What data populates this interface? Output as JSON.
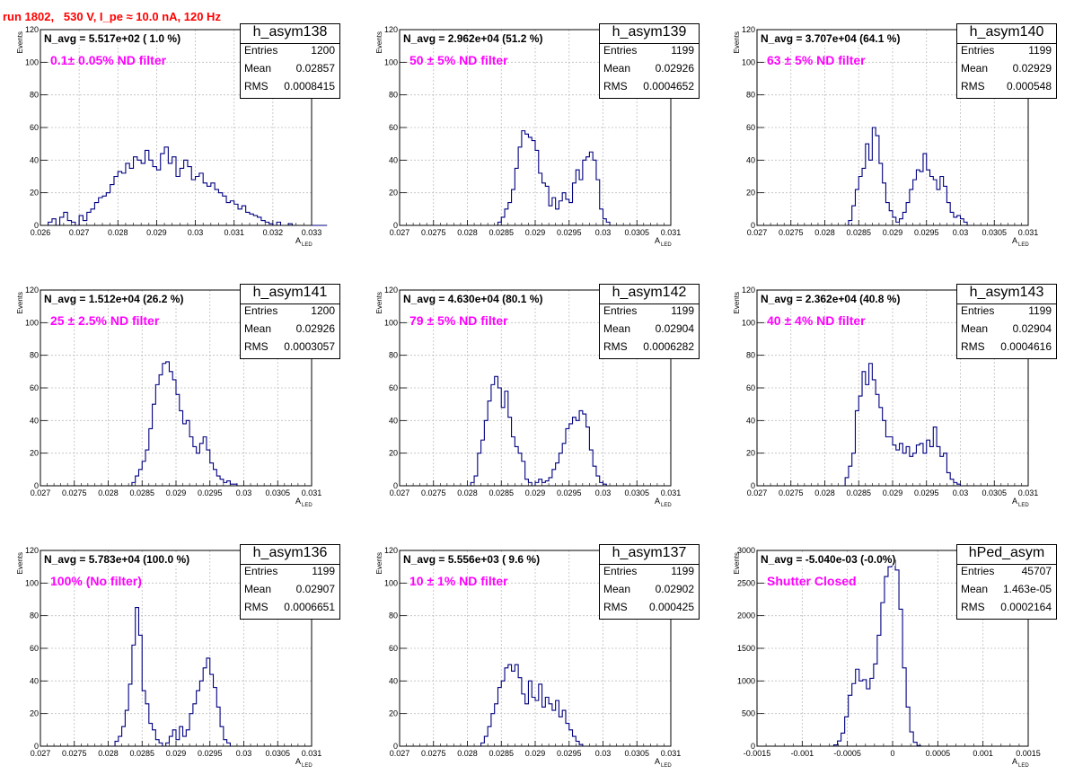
{
  "header": {
    "run_title": "run 1802,   530 V, I_pe ≈ 10.0 nA, 120 Hz"
  },
  "stats_labels": {
    "entries": "Entries",
    "mean": "Mean",
    "rms": "RMS"
  },
  "axis_labels": {
    "y": "Events",
    "x_main": "A",
    "x_sub": "LED"
  },
  "colors": {
    "histogram": "#000080",
    "grid": "#bdbdbd",
    "run_title": "#ff0000",
    "filter_text": "#ff00ff"
  },
  "chart_data": [
    {
      "type": "bar",
      "name": "h_asym138",
      "title": "N_avg = 5.517e+02 ( 1.0 %)",
      "filter_label": "0.1± 0.05% ND filter",
      "entries": "1200",
      "mean": "0.02857",
      "rms": "0.0008415",
      "xlim": [
        0.026,
        0.033
      ],
      "ylim": [
        0,
        120
      ],
      "xticks": [
        0.026,
        0.027,
        0.028,
        0.029,
        0.03,
        0.031,
        0.032,
        0.033
      ],
      "xtick_labels": [
        "0.026",
        "0.027",
        "0.028",
        "0.029",
        "0.03",
        "0.031",
        "0.032",
        "0.033"
      ],
      "yticks": [
        0,
        20,
        40,
        60,
        80,
        100,
        120
      ],
      "ytick_labels": [
        "0",
        "20",
        "40",
        "60",
        "80",
        "100",
        "120"
      ],
      "bin_start": 0.0262,
      "bin_width": 0.0001,
      "values": [
        2,
        4,
        0,
        5,
        8,
        3,
        2,
        0,
        6,
        3,
        8,
        10,
        14,
        17,
        18,
        20,
        25,
        30,
        33,
        32,
        38,
        35,
        42,
        40,
        38,
        46,
        40,
        36,
        34,
        44,
        48,
        38,
        42,
        30,
        35,
        40,
        36,
        28,
        30,
        32,
        26,
        24,
        26,
        22,
        20,
        18,
        14,
        15,
        13,
        10,
        12,
        8,
        7,
        6,
        5,
        3,
        2,
        1,
        0,
        2,
        0,
        0,
        1,
        0,
        0,
        0,
        0,
        0,
        0,
        0,
        0,
        0
      ]
    },
    {
      "type": "bar",
      "name": "h_asym139",
      "title": "N_avg = 2.962e+04 (51.2 %)",
      "filter_label": "50 ± 5% ND filter",
      "entries": "1199",
      "mean": "0.02926",
      "rms": "0.0004652",
      "xlim": [
        0.027,
        0.031
      ],
      "ylim": [
        0,
        120
      ],
      "xticks": [
        0.027,
        0.0275,
        0.028,
        0.0285,
        0.029,
        0.0295,
        0.03,
        0.0305,
        0.031
      ],
      "xtick_labels": [
        "0.027",
        "0.0275",
        "0.028",
        "0.0285",
        "0.029",
        "0.0295",
        "0.03",
        "0.0305",
        "0.031"
      ],
      "yticks": [
        0,
        20,
        40,
        60,
        80,
        100,
        120
      ],
      "ytick_labels": [
        "0",
        "20",
        "40",
        "60",
        "80",
        "100",
        "120"
      ],
      "bin_start": 0.02845,
      "bin_width": 5e-05,
      "values": [
        2,
        5,
        10,
        14,
        22,
        35,
        48,
        58,
        56,
        54,
        52,
        46,
        32,
        26,
        24,
        12,
        17,
        10,
        15,
        20,
        16,
        14,
        26,
        34,
        28,
        40,
        42,
        45,
        40,
        28,
        10,
        4,
        2,
        0
      ]
    },
    {
      "type": "bar",
      "name": "h_asym140",
      "title": "N_avg = 3.707e+04 (64.1 %)",
      "filter_label": "63 ± 5% ND filter",
      "entries": "1199",
      "mean": "0.02929",
      "rms": "0.000548",
      "xlim": [
        0.027,
        0.031
      ],
      "ylim": [
        0,
        120
      ],
      "xticks": [
        0.027,
        0.0275,
        0.028,
        0.0285,
        0.029,
        0.0295,
        0.03,
        0.0305,
        0.031
      ],
      "xtick_labels": [
        "0.027",
        "0.0275",
        "0.028",
        "0.0285",
        "0.029",
        "0.0295",
        "0.03",
        "0.0305",
        "0.031"
      ],
      "yticks": [
        0,
        20,
        40,
        60,
        80,
        100,
        120
      ],
      "ytick_labels": [
        "0",
        "20",
        "40",
        "60",
        "80",
        "100",
        "120"
      ],
      "bin_start": 0.02835,
      "bin_width": 5e-05,
      "values": [
        3,
        12,
        22,
        30,
        35,
        50,
        40,
        60,
        55,
        38,
        26,
        14,
        9,
        5,
        2,
        4,
        8,
        14,
        22,
        28,
        34,
        33,
        44,
        34,
        30,
        28,
        22,
        30,
        24,
        14,
        8,
        5,
        6,
        4,
        2
      ]
    },
    {
      "type": "bar",
      "name": "h_asym141",
      "title": "N_avg = 1.512e+04 (26.2 %)",
      "filter_label": "25 ± 2.5% ND filter",
      "entries": "1200",
      "mean": "0.02926",
      "rms": "0.0003057",
      "xlim": [
        0.027,
        0.031
      ],
      "ylim": [
        0,
        120
      ],
      "xticks": [
        0.027,
        0.0275,
        0.028,
        0.0285,
        0.029,
        0.0295,
        0.03,
        0.0305,
        0.031
      ],
      "xtick_labels": [
        "0.027",
        "0.0275",
        "0.028",
        "0.0285",
        "0.029",
        "0.0295",
        "0.03",
        "0.0305",
        "0.031"
      ],
      "yticks": [
        0,
        20,
        40,
        60,
        80,
        100,
        120
      ],
      "ytick_labels": [
        "0",
        "20",
        "40",
        "60",
        "80",
        "100",
        "120"
      ],
      "bin_start": 0.02835,
      "bin_width": 5e-05,
      "values": [
        2,
        6,
        10,
        15,
        22,
        35,
        50,
        62,
        68,
        75,
        76,
        70,
        65,
        56,
        46,
        38,
        40,
        30,
        24,
        20,
        26,
        30,
        22,
        14,
        10,
        6,
        4,
        2,
        3,
        1,
        1,
        0,
        0
      ]
    },
    {
      "type": "bar",
      "name": "h_asym142",
      "title": "N_avg = 4.630e+04 (80.1 %)",
      "filter_label": "79 ± 5% ND filter",
      "entries": "1199",
      "mean": "0.02904",
      "rms": "0.0006282",
      "xlim": [
        0.027,
        0.031
      ],
      "ylim": [
        0,
        120
      ],
      "xticks": [
        0.027,
        0.0275,
        0.028,
        0.0285,
        0.029,
        0.0295,
        0.03,
        0.0305,
        0.031
      ],
      "xtick_labels": [
        "0.027",
        "0.0275",
        "0.028",
        "0.0285",
        "0.029",
        "0.0295",
        "0.03",
        "0.0305",
        "0.031"
      ],
      "yticks": [
        0,
        20,
        40,
        60,
        80,
        100,
        120
      ],
      "ytick_labels": [
        "0",
        "20",
        "40",
        "60",
        "80",
        "100",
        "120"
      ],
      "bin_start": 0.02805,
      "bin_width": 5e-05,
      "values": [
        2,
        6,
        20,
        28,
        40,
        52,
        62,
        67,
        60,
        48,
        58,
        42,
        30,
        24,
        20,
        15,
        4,
        2,
        0,
        2,
        4,
        2,
        3,
        5,
        10,
        14,
        20,
        26,
        35,
        38,
        42,
        40,
        46,
        44,
        36,
        22,
        12,
        6,
        2,
        1
      ]
    },
    {
      "type": "bar",
      "name": "h_asym143",
      "title": "N_avg = 2.362e+04 (40.8 %)",
      "filter_label": "40 ± 4% ND filter",
      "entries": "1199",
      "mean": "0.02904",
      "rms": "0.0004616",
      "xlim": [
        0.027,
        0.031
      ],
      "ylim": [
        0,
        120
      ],
      "xticks": [
        0.027,
        0.0275,
        0.028,
        0.0285,
        0.029,
        0.0295,
        0.03,
        0.0305,
        0.031
      ],
      "xtick_labels": [
        "0.027",
        "0.0275",
        "0.028",
        "0.0285",
        "0.029",
        "0.0295",
        "0.03",
        "0.0305",
        "0.031"
      ],
      "yticks": [
        0,
        20,
        40,
        60,
        80,
        100,
        120
      ],
      "ytick_labels": [
        "0",
        "20",
        "40",
        "60",
        "80",
        "100",
        "120"
      ],
      "bin_start": 0.0283,
      "bin_width": 5e-05,
      "values": [
        5,
        12,
        20,
        46,
        55,
        70,
        62,
        75,
        65,
        56,
        48,
        40,
        30,
        30,
        25,
        22,
        26,
        20,
        24,
        18,
        20,
        25,
        26,
        20,
        28,
        24,
        36,
        24,
        18,
        20,
        8,
        4,
        2,
        1
      ]
    },
    {
      "type": "bar",
      "name": "h_asym136",
      "title": "N_avg = 5.783e+04 (100.0 %)",
      "filter_label": "100% (No filter)",
      "entries": "1199",
      "mean": "0.02907",
      "rms": "0.0006651",
      "xlim": [
        0.027,
        0.031
      ],
      "ylim": [
        0,
        120
      ],
      "xticks": [
        0.027,
        0.0275,
        0.028,
        0.0285,
        0.029,
        0.0295,
        0.03,
        0.0305,
        0.031
      ],
      "xtick_labels": [
        "0.027",
        "0.0275",
        "0.028",
        "0.0285",
        "0.029",
        "0.0295",
        "0.03",
        "0.0305",
        "0.031"
      ],
      "yticks": [
        0,
        20,
        40,
        60,
        80,
        100,
        120
      ],
      "ytick_labels": [
        "0",
        "20",
        "40",
        "60",
        "80",
        "100",
        "120"
      ],
      "bin_start": 0.0281,
      "bin_width": 5e-05,
      "values": [
        3,
        6,
        12,
        22,
        38,
        62,
        85,
        68,
        34,
        26,
        14,
        10,
        4,
        2,
        0,
        2,
        6,
        10,
        4,
        12,
        6,
        10,
        20,
        26,
        34,
        40,
        48,
        54,
        44,
        36,
        24,
        12,
        4,
        2
      ]
    },
    {
      "type": "bar",
      "name": "h_asym137",
      "title": "N_avg = 5.556e+03 ( 9.6 %)",
      "filter_label": "10 ± 1% ND filter",
      "entries": "1199",
      "mean": "0.02902",
      "rms": "0.000425",
      "xlim": [
        0.027,
        0.031
      ],
      "ylim": [
        0,
        120
      ],
      "xticks": [
        0.027,
        0.0275,
        0.028,
        0.0285,
        0.029,
        0.0295,
        0.03,
        0.0305,
        0.031
      ],
      "xtick_labels": [
        "0.027",
        "0.0275",
        "0.028",
        "0.0285",
        "0.029",
        "0.0295",
        "0.03",
        "0.0305",
        "0.031"
      ],
      "yticks": [
        0,
        20,
        40,
        60,
        80,
        100,
        120
      ],
      "ytick_labels": [
        "0",
        "20",
        "40",
        "60",
        "80",
        "100",
        "120"
      ],
      "bin_start": 0.0282,
      "bin_width": 5e-05,
      "values": [
        2,
        6,
        12,
        20,
        26,
        36,
        40,
        48,
        50,
        46,
        50,
        42,
        32,
        26,
        40,
        30,
        28,
        38,
        24,
        30,
        26,
        22,
        28,
        18,
        22,
        14,
        10,
        6,
        3,
        1
      ]
    },
    {
      "type": "bar",
      "name": "hPed_asym",
      "title": "N_avg = -5.040e-03 (-0.0%)",
      "filter_label": "Shutter Closed",
      "entries": "45707",
      "mean": "1.463e-05",
      "rms": "0.0002164",
      "xlim": [
        -0.0015,
        0.0015
      ],
      "ylim": [
        0,
        3000
      ],
      "xticks": [
        -0.0015,
        -0.001,
        -0.0005,
        0,
        0.0005,
        0.001,
        0.0015
      ],
      "xtick_labels": [
        "-0.0015",
        "-0.001",
        "-0.0005",
        "0",
        "0.0005",
        "0.001",
        "0.0015"
      ],
      "yticks": [
        0,
        500,
        1000,
        1500,
        2000,
        2500,
        3000
      ],
      "ytick_labels": [
        "0",
        "500",
        "1000",
        "1500",
        "2000",
        "2500",
        "3000"
      ],
      "bin_start": -0.00065,
      "bin_width": 4e-05,
      "values": [
        20,
        80,
        200,
        450,
        780,
        960,
        1180,
        1000,
        1020,
        880,
        1040,
        1260,
        1700,
        2200,
        2600,
        2750,
        2850,
        2700,
        2100,
        1200,
        600,
        220,
        60,
        10
      ]
    }
  ]
}
